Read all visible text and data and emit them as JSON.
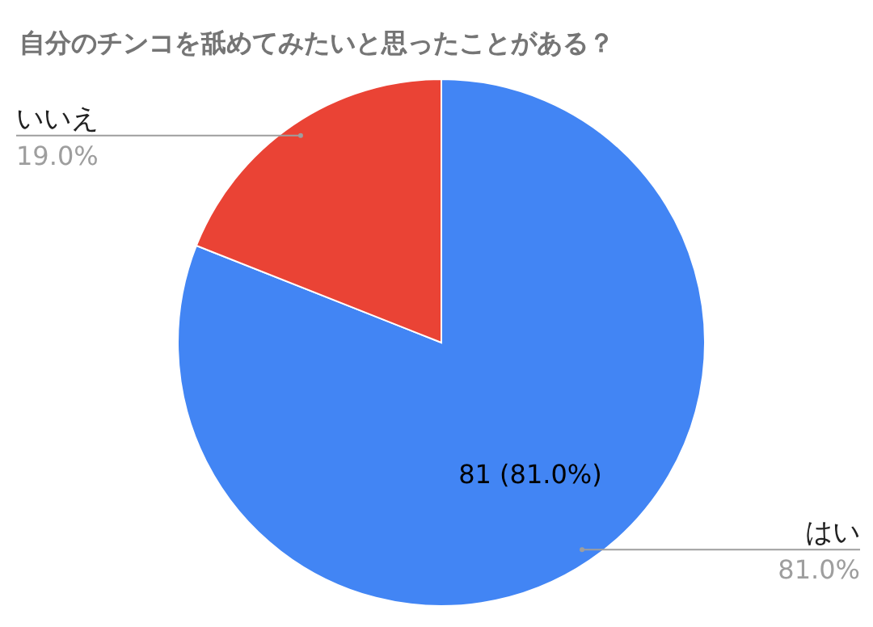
{
  "chart_data": {
    "type": "pie",
    "title": "自分のチンコを舐めてみたいと思ったことがある？",
    "categories": [
      "はい",
      "いいえ"
    ],
    "values": [
      81,
      19
    ],
    "colors": [
      "#4285f4",
      "#ea4335"
    ],
    "value_labels": [
      "81 (81.0%)",
      null
    ],
    "annotations": [
      "81.0%",
      "19.0%"
    ]
  }
}
